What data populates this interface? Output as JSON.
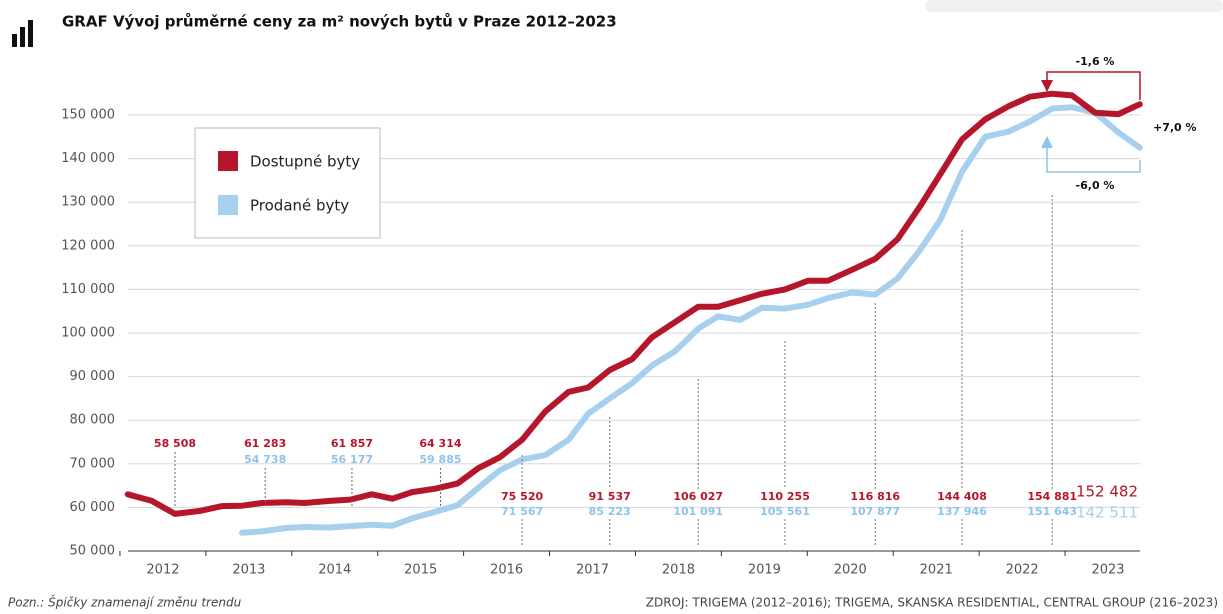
{
  "chart_data": {
    "type": "line",
    "title": "GRAF  Vývoj průměrné ceny za m² nových bytů v Praze 2012–2023",
    "x": [
      2012.09,
      2012.37,
      2012.64,
      2012.93,
      2013.19,
      2013.42,
      2013.65,
      2013.94,
      2014.15,
      2014.44,
      2014.68,
      2014.93,
      2015.17,
      2015.4,
      2015.67,
      2015.93,
      2016.17,
      2016.42,
      2016.68,
      2016.95,
      2017.22,
      2017.45,
      2017.7,
      2017.96,
      2018.19,
      2018.46,
      2018.73,
      2018.96,
      2019.22,
      2019.47,
      2019.74,
      2020.01,
      2020.24,
      2020.52,
      2020.79,
      2021.05,
      2021.31,
      2021.55,
      2021.8,
      2022.07,
      2022.34,
      2022.59,
      2022.85,
      2023.08,
      2023.35,
      2023.62,
      2023.87
    ],
    "series": [
      {
        "name": "Dostupné byty",
        "color": "#b5162b",
        "values": [
          63000,
          61500,
          58500,
          59200,
          60300,
          60400,
          61000,
          61200,
          61000,
          61500,
          61800,
          63000,
          62000,
          63500,
          64300,
          65500,
          69000,
          71500,
          75500,
          82000,
          86500,
          87500,
          91500,
          94000,
          99000,
          102500,
          106000,
          106000,
          107500,
          109000,
          110000,
          112000,
          112000,
          114500,
          117000,
          121500,
          129000,
          136500,
          144400,
          149000,
          152000,
          154200,
          154881,
          154500,
          150500,
          150200,
          152482
        ]
      },
      {
        "name": "Prodané byty",
        "color": "#a7cfee",
        "values": [
          null,
          null,
          null,
          null,
          null,
          54200,
          54500,
          55300,
          55500,
          55400,
          55700,
          56000,
          55800,
          57500,
          59000,
          60500,
          64500,
          68500,
          71000,
          72000,
          75500,
          81500,
          85000,
          88500,
          92500,
          95800,
          101000,
          103800,
          103000,
          105800,
          105600,
          106500,
          108000,
          109300,
          108800,
          112500,
          119000,
          126000,
          137000,
          145000,
          146200,
          148500,
          151500,
          151800,
          150500,
          146000,
          142511
        ]
      }
    ],
    "xlim": [
      2012,
      2024
    ],
    "xticks": [
      {
        "value": 2012.5,
        "label": "2012"
      },
      {
        "value": 2013.5,
        "label": "2013"
      },
      {
        "value": 2014.5,
        "label": "2014"
      },
      {
        "value": 2015.5,
        "label": "2015"
      },
      {
        "value": 2016.5,
        "label": "2016"
      },
      {
        "value": 2017.5,
        "label": "2017"
      },
      {
        "value": 2018.5,
        "label": "2018"
      },
      {
        "value": 2019.5,
        "label": "2019"
      },
      {
        "value": 2020.5,
        "label": "2020"
      },
      {
        "value": 2021.5,
        "label": "2021"
      },
      {
        "value": 2022.5,
        "label": "2022"
      },
      {
        "value": 2023.5,
        "label": "2023"
      }
    ],
    "ylim": [
      50000,
      150000
    ],
    "yticks": [
      {
        "value": 50000,
        "label": "50 000"
      },
      {
        "value": 60000,
        "label": "60 000"
      },
      {
        "value": 70000,
        "label": "70 000"
      },
      {
        "value": 80000,
        "label": "80 000"
      },
      {
        "value": 90000,
        "label": "90 000"
      },
      {
        "value": 100000,
        "label": "100 000"
      },
      {
        "value": 110000,
        "label": "110 000"
      },
      {
        "value": 120000,
        "label": "120 000"
      },
      {
        "value": 130000,
        "label": "130 000"
      },
      {
        "value": 140000,
        "label": "140 000"
      },
      {
        "value": 150000,
        "label": "150 000"
      }
    ],
    "grid": true,
    "annotations": [
      {
        "x": 2012.64,
        "placement": "above",
        "red": "58 508"
      },
      {
        "x": 2013.69,
        "placement": "above",
        "red": "61 283",
        "blue": "54 738"
      },
      {
        "x": 2014.7,
        "placement": "above",
        "red": "61 857",
        "blue": "56 177"
      },
      {
        "x": 2015.73,
        "placement": "above",
        "red": "64 314",
        "blue": "59 885"
      },
      {
        "x": 2016.68,
        "placement": "below",
        "red": "75 520",
        "blue": "71 567"
      },
      {
        "x": 2017.7,
        "placement": "below",
        "red": "91 537",
        "blue": "85 223"
      },
      {
        "x": 2018.73,
        "placement": "below",
        "red": "106 027",
        "blue": "101 091"
      },
      {
        "x": 2019.74,
        "placement": "below",
        "red": "110 255",
        "blue": "105 561"
      },
      {
        "x": 2020.79,
        "placement": "below",
        "red": "116 816",
        "blue": "107 877"
      },
      {
        "x": 2021.8,
        "placement": "below",
        "red": "144 408",
        "blue": "137 946"
      },
      {
        "x": 2022.85,
        "placement": "below",
        "red": "154 881",
        "blue": "151 643"
      },
      {
        "x": 2023.82,
        "placement": "final",
        "red": "152 482",
        "blue": "142 511"
      }
    ],
    "changes": {
      "red_change": "-1,6 %",
      "cross_change": "+7,0 %",
      "blue_change": "-6,0 %"
    },
    "note": "Pozn.: Špičky znamenají změnu trendu",
    "source": "ZDROJ: TRIGEMA (2012–2016); TRIGEMA, SKANSKA RESIDENTIAL, CENTRAL GROUP (216–2023)"
  }
}
